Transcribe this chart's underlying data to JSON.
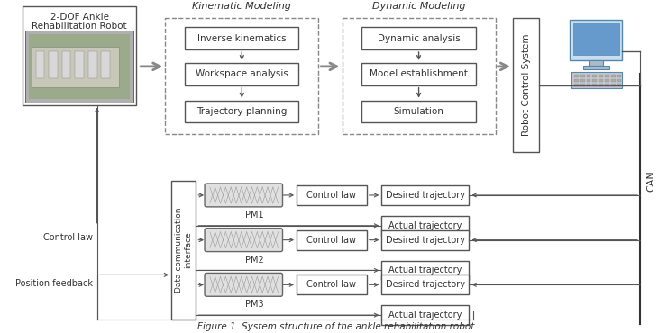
{
  "title": "Figure 1. System structure of the ankle rehabilitation robot.",
  "bg_color": "#ffffff",
  "box_color": "#ffffff",
  "box_edge": "#555555",
  "dashed_edge": "#888888",
  "arrow_color": "#555555",
  "text_color": "#333333",
  "top_blocks": {
    "kinematic_title": "Kinematic Modeling",
    "dynamic_title": "Dynamic Modeling",
    "kin_boxes": [
      "Inverse kinematics",
      "Workspace analysis",
      "Trajectory planning"
    ],
    "dyn_boxes": [
      "Dynamic analysis",
      "Model establishment",
      "Simulation"
    ]
  },
  "right_box": "Robot Control System",
  "bottom_left_box": "Data communication\ninterface",
  "pm_labels": [
    "PM1",
    "PM2",
    "PM3"
  ],
  "control_labels": [
    "Control law",
    "Control law",
    "Control law"
  ],
  "desired_labels": [
    "Desired trajectory",
    "Desired trajectory",
    "Desired trajectory"
  ],
  "actual_labels": [
    "Actual trajectory",
    "Actual trajectory",
    "Actual trajectory"
  ],
  "left_labels": [
    "Control law",
    "Position feedback"
  ],
  "can_label": "CAN"
}
